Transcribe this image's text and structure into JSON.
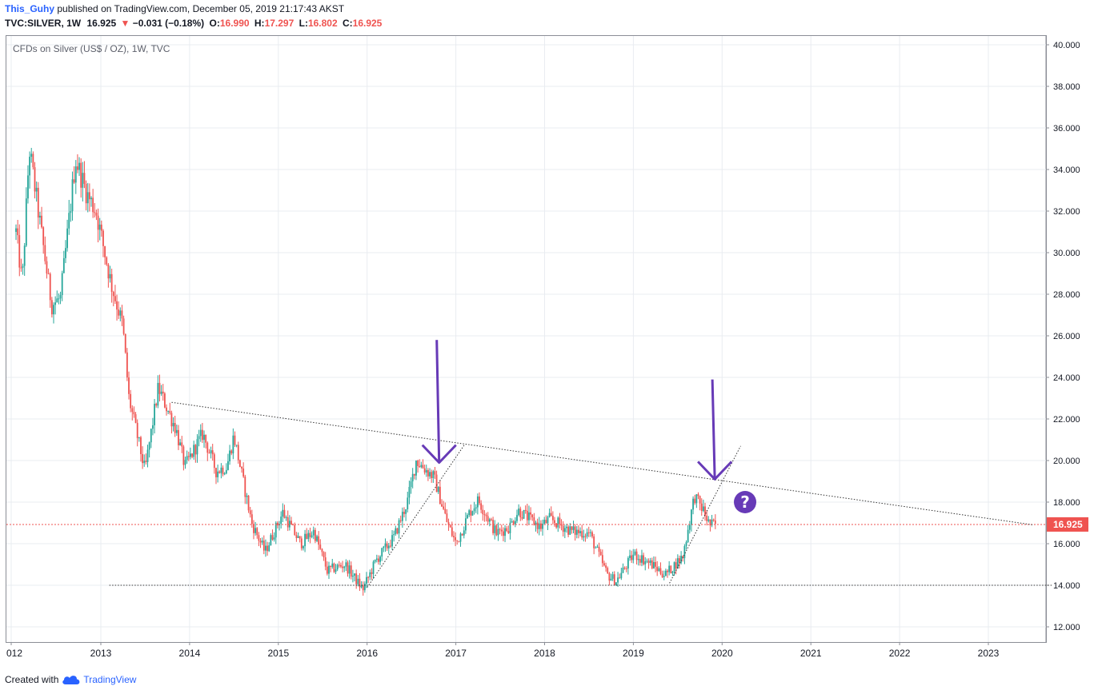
{
  "header": {
    "author": "This_Guhy",
    "published_text": "published on TradingView.com, December 05, 2019 21:17:43 AKST",
    "symbol": "TVC:SILVER, 1W",
    "price": "16.925",
    "change_arrow": "▼",
    "change": "−0.031 (−0.18%)",
    "open_label": "O:",
    "open": "16.990",
    "high_label": "H:",
    "high": "17.297",
    "low_label": "L:",
    "low": "16.802",
    "close_label": "C:",
    "close": "16.925"
  },
  "footer": {
    "created_with": "Created with",
    "brand": "TradingView"
  },
  "colors": {
    "up": "#26a69a",
    "down": "#ef5350",
    "grid": "#e9ecf1",
    "annotation": "#673ab7",
    "price_label": "#ef5350"
  },
  "chart_data": {
    "type": "candlestick",
    "title": "CFDs on Silver (US$ / OZ), 1W, TVC",
    "x_tick_labels": [
      "012",
      "2013",
      "2014",
      "2015",
      "2016",
      "2017",
      "2018",
      "2019",
      "2020",
      "2021",
      "2022",
      "2023"
    ],
    "x_range": [
      2012.05,
      2023.8
    ],
    "y_ticks": [
      "40.000",
      "38.000",
      "36.000",
      "34.000",
      "32.000",
      "30.000",
      "28.000",
      "26.000",
      "24.000",
      "22.000",
      "20.000",
      "18.000",
      "16.000",
      "14.000",
      "12.000"
    ],
    "ylim": [
      11.2,
      40.5
    ],
    "last_price": 16.925,
    "last_price_label": "16.925",
    "series_anchors": [
      {
        "t": 2012.05,
        "p": 31.0
      },
      {
        "t": 2012.12,
        "p": 28.5
      },
      {
        "t": 2012.2,
        "p": 35.0
      },
      {
        "t": 2012.3,
        "p": 32.0
      },
      {
        "t": 2012.45,
        "p": 27.5
      },
      {
        "t": 2012.55,
        "p": 27.8
      },
      {
        "t": 2012.72,
        "p": 34.5
      },
      {
        "t": 2012.85,
        "p": 32.8
      },
      {
        "t": 2012.95,
        "p": 32.0
      },
      {
        "t": 2013.12,
        "p": 28.5
      },
      {
        "t": 2013.25,
        "p": 26.5
      },
      {
        "t": 2013.32,
        "p": 23.0
      },
      {
        "t": 2013.5,
        "p": 19.5
      },
      {
        "t": 2013.65,
        "p": 23.5
      },
      {
        "t": 2013.85,
        "p": 21.5
      },
      {
        "t": 2013.95,
        "p": 19.7
      },
      {
        "t": 2014.15,
        "p": 21.3
      },
      {
        "t": 2014.3,
        "p": 19.5
      },
      {
        "t": 2014.42,
        "p": 19.7
      },
      {
        "t": 2014.5,
        "p": 21.2
      },
      {
        "t": 2014.7,
        "p": 17.0
      },
      {
        "t": 2014.85,
        "p": 15.6
      },
      {
        "t": 2015.05,
        "p": 17.5
      },
      {
        "t": 2015.25,
        "p": 16.0
      },
      {
        "t": 2015.4,
        "p": 16.6
      },
      {
        "t": 2015.55,
        "p": 14.7
      },
      {
        "t": 2015.75,
        "p": 15.0
      },
      {
        "t": 2015.95,
        "p": 13.8
      },
      {
        "t": 2016.1,
        "p": 15.2
      },
      {
        "t": 2016.3,
        "p": 16.3
      },
      {
        "t": 2016.45,
        "p": 18.0
      },
      {
        "t": 2016.55,
        "p": 20.0
      },
      {
        "t": 2016.75,
        "p": 19.2
      },
      {
        "t": 2016.9,
        "p": 17.0
      },
      {
        "t": 2017.0,
        "p": 16.0
      },
      {
        "t": 2017.15,
        "p": 17.5
      },
      {
        "t": 2017.25,
        "p": 18.1
      },
      {
        "t": 2017.45,
        "p": 16.5
      },
      {
        "t": 2017.6,
        "p": 16.8
      },
      {
        "t": 2017.7,
        "p": 17.6
      },
      {
        "t": 2017.95,
        "p": 16.8
      },
      {
        "t": 2018.05,
        "p": 17.2
      },
      {
        "t": 2018.3,
        "p": 16.6
      },
      {
        "t": 2018.5,
        "p": 16.5
      },
      {
        "t": 2018.7,
        "p": 14.5
      },
      {
        "t": 2018.8,
        "p": 14.2
      },
      {
        "t": 2019.0,
        "p": 15.5
      },
      {
        "t": 2019.2,
        "p": 15.0
      },
      {
        "t": 2019.35,
        "p": 14.5
      },
      {
        "t": 2019.55,
        "p": 15.4
      },
      {
        "t": 2019.68,
        "p": 18.3
      },
      {
        "t": 2019.78,
        "p": 17.6
      },
      {
        "t": 2019.85,
        "p": 16.9
      },
      {
        "t": 2019.92,
        "p": 16.925
      }
    ],
    "annotations": {
      "resistance_line": {
        "from": [
          2013.8,
          22.8
        ],
        "to": [
          2023.5,
          16.9
        ]
      },
      "support_line": {
        "from": [
          2013.1,
          14.0
        ],
        "to": [
          2023.7,
          14.0
        ]
      },
      "trend_line_1": {
        "from": [
          2016.0,
          13.9
        ],
        "to": [
          2017.1,
          20.8
        ]
      },
      "trend_line_2": {
        "from": [
          2019.4,
          14.1
        ],
        "to": [
          2020.2,
          20.7
        ]
      },
      "arrow_1": {
        "x": 2016.8,
        "top": 25.8,
        "tip": 19.9
      },
      "arrow_2": {
        "x": 2019.9,
        "top": 23.9,
        "tip": 19.1
      },
      "question_mark": {
        "x": 2020.25,
        "y": 18.0,
        "text": "?"
      }
    }
  }
}
